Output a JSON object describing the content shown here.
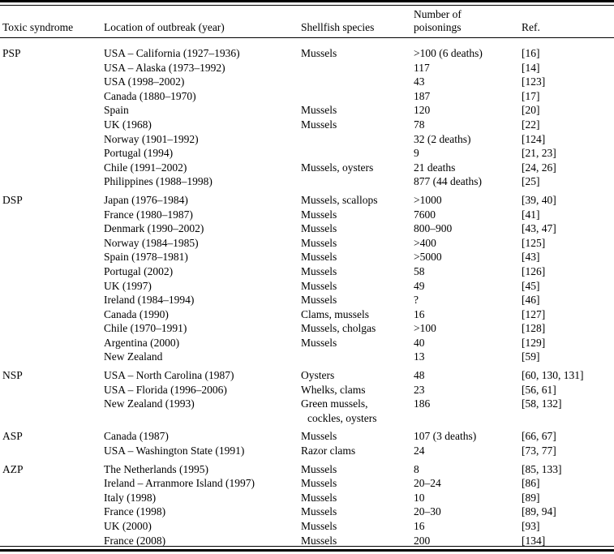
{
  "page": {
    "background": "#ffffff",
    "text_color": "#000000",
    "rule_color": "#000000"
  },
  "table": {
    "header": {
      "toxic_syndrome": "Toxic syndrome",
      "location": "Location of outbreak (year)",
      "species": "Shellfish species",
      "poisonings_line1": "Number of",
      "poisonings_line2": "poisonings",
      "ref": "Ref."
    },
    "sections": [
      {
        "syndrome": "PSP",
        "rows": [
          {
            "location": "USA – California (1927–1936)",
            "species": [
              "Mussels"
            ],
            "poisonings": ">100 (6 deaths)",
            "ref": "[16]"
          },
          {
            "location": "USA – Alaska (1973–1992)",
            "species": [],
            "poisonings": "117",
            "ref": "[14]"
          },
          {
            "location": "USA (1998–2002)",
            "species": [],
            "poisonings": "43",
            "ref": "[123]"
          },
          {
            "location": "Canada (1880–1970)",
            "species": [],
            "poisonings": "187",
            "ref": "[17]"
          },
          {
            "location": "Spain",
            "species": [
              "Mussels"
            ],
            "poisonings": "120",
            "ref": "[20]"
          },
          {
            "location": "UK (1968)",
            "species": [
              "Mussels"
            ],
            "poisonings": "78",
            "ref": "[22]"
          },
          {
            "location": "Norway (1901–1992)",
            "species": [],
            "poisonings": "32 (2 deaths)",
            "ref": "[124]"
          },
          {
            "location": "Portugal (1994)",
            "species": [],
            "poisonings": "9",
            "ref": "[21, 23]"
          },
          {
            "location": "Chile (1991–2002)",
            "species": [
              "Mussels, oysters"
            ],
            "poisonings": "21 deaths",
            "ref": "[24, 26]"
          },
          {
            "location": "Philippines (1988–1998)",
            "species": [],
            "poisonings": "877 (44 deaths)",
            "ref": "[25]"
          }
        ]
      },
      {
        "syndrome": "DSP",
        "rows": [
          {
            "location": "Japan (1976–1984)",
            "species": [
              "Mussels, scallops"
            ],
            "poisonings": ">1000",
            "ref": "[39, 40]"
          },
          {
            "location": "France (1980–1987)",
            "species": [
              "Mussels"
            ],
            "poisonings": "7600",
            "ref": "[41]"
          },
          {
            "location": "Denmark (1990–2002)",
            "species": [
              "Mussels"
            ],
            "poisonings": "800–900",
            "ref": "[43, 47]"
          },
          {
            "location": "Norway (1984–1985)",
            "species": [
              "Mussels"
            ],
            "poisonings": ">400",
            "ref": "[125]"
          },
          {
            "location": "Spain (1978–1981)",
            "species": [
              "Mussels"
            ],
            "poisonings": ">5000",
            "ref": "[43]"
          },
          {
            "location": "Portugal (2002)",
            "species": [
              "Mussels"
            ],
            "poisonings": "58",
            "ref": "[126]"
          },
          {
            "location": "UK (1997)",
            "species": [
              "Mussels"
            ],
            "poisonings": "49",
            "ref": "[45]"
          },
          {
            "location": "Ireland (1984–1994)",
            "species": [
              "Mussels"
            ],
            "poisonings": "?",
            "ref": "[46]"
          },
          {
            "location": "Canada (1990)",
            "species": [
              "Clams, mussels"
            ],
            "poisonings": "16",
            "ref": "[127]"
          },
          {
            "location": "Chile (1970–1991)",
            "species": [
              "Mussels, cholgas"
            ],
            "poisonings": ">100",
            "ref": "[128]"
          },
          {
            "location": "Argentina (2000)",
            "species": [
              "Mussels"
            ],
            "poisonings": "40",
            "ref": "[129]"
          },
          {
            "location": "New Zealand",
            "species": [],
            "poisonings": "13",
            "ref": "[59]"
          }
        ]
      },
      {
        "syndrome": "NSP",
        "rows": [
          {
            "location": "USA – North Carolina (1987)",
            "species": [
              "Oysters"
            ],
            "poisonings": "48",
            "ref": "[60, 130, 131]"
          },
          {
            "location": "USA – Florida (1996–2006)",
            "species": [
              "Whelks, clams"
            ],
            "poisonings": "23",
            "ref": "[56, 61]"
          },
          {
            "location": "New Zealand (1993)",
            "species": [
              "Green mussels,",
              "cockles, oysters"
            ],
            "poisonings": "186",
            "ref": "[58, 132]"
          }
        ]
      },
      {
        "syndrome": "ASP",
        "rows": [
          {
            "location": "Canada (1987)",
            "species": [
              "Mussels"
            ],
            "poisonings": "107 (3 deaths)",
            "ref": "[66, 67]"
          },
          {
            "location": "USA – Washington State (1991)",
            "species": [
              "Razor clams"
            ],
            "poisonings": "24",
            "ref": "[73, 77]"
          }
        ]
      },
      {
        "syndrome": "AZP",
        "rows": [
          {
            "location": "The Netherlands (1995)",
            "species": [
              "Mussels"
            ],
            "poisonings": "8",
            "ref": "[85, 133]"
          },
          {
            "location": "Ireland – Arranmore Island (1997)",
            "species": [
              "Mussels"
            ],
            "poisonings": "20–24",
            "ref": "[86]"
          },
          {
            "location": "Italy (1998)",
            "species": [
              "Mussels"
            ],
            "poisonings": "10",
            "ref": "[89]"
          },
          {
            "location": "France (1998)",
            "species": [
              "Mussels"
            ],
            "poisonings": "20–30",
            "ref": "[89, 94]"
          },
          {
            "location": "UK (2000)",
            "species": [
              "Mussels"
            ],
            "poisonings": "16",
            "ref": "[93]"
          },
          {
            "location": "France (2008)",
            "species": [
              "Mussels"
            ],
            "poisonings": "200",
            "ref": "[134]"
          }
        ]
      }
    ]
  }
}
